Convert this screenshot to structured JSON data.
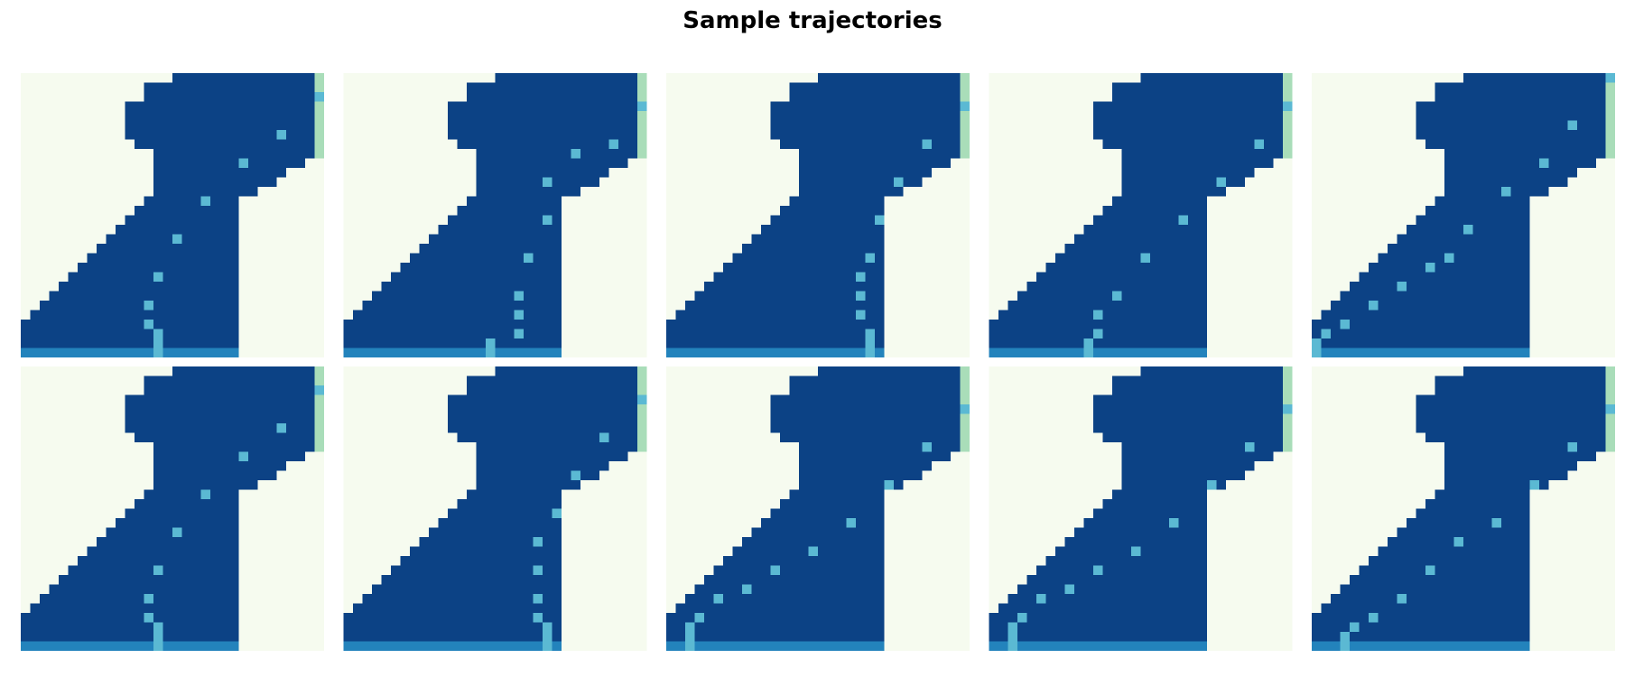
{
  "title": "Sample trajectories",
  "chart_data": {
    "type": "heatmap",
    "grid_rows": 30,
    "grid_cols": 32,
    "panel_layout": {
      "rows": 2,
      "cols": 5
    },
    "colors": {
      "empty": "#f6fbef",
      "track": "#0c4285",
      "start_line": "#2383bc",
      "car": "#5bb9d3",
      "finish": "#a9ddb9"
    },
    "track_rows": [
      [
        16,
        31
      ],
      [
        13,
        31
      ],
      [
        13,
        31
      ],
      [
        11,
        31
      ],
      [
        11,
        31
      ],
      [
        11,
        31
      ],
      [
        11,
        31
      ],
      [
        12,
        31
      ],
      [
        14,
        30
      ],
      [
        14,
        29
      ],
      [
        14,
        27
      ],
      [
        14,
        26
      ],
      [
        14,
        24
      ],
      [
        13,
        22
      ],
      [
        12,
        22
      ],
      [
        11,
        22
      ],
      [
        10,
        22
      ],
      [
        9,
        22
      ],
      [
        8,
        22
      ],
      [
        7,
        22
      ],
      [
        6,
        22
      ],
      [
        5,
        22
      ],
      [
        4,
        22
      ],
      [
        3,
        22
      ],
      [
        2,
        22
      ],
      [
        1,
        22
      ],
      [
        0,
        22
      ],
      [
        0,
        22
      ],
      [
        0,
        22
      ]
    ],
    "finish_cells": {
      "col": 31,
      "rows": [
        0,
        1,
        2,
        3,
        4,
        5,
        6,
        7,
        8
      ]
    },
    "panels": [
      {
        "id": "row1-col1",
        "car_marker_row": 2,
        "path": [
          [
            28,
            14
          ],
          [
            27,
            14
          ],
          [
            26,
            13
          ],
          [
            24,
            13
          ],
          [
            21,
            14
          ],
          [
            17,
            16
          ],
          [
            13,
            19
          ],
          [
            9,
            23
          ],
          [
            6,
            27
          ]
        ]
      },
      {
        "id": "row1-col2",
        "car_marker_row": 3,
        "path": [
          [
            28,
            15
          ],
          [
            27,
            18
          ],
          [
            25,
            18
          ],
          [
            23,
            18
          ],
          [
            19,
            19
          ],
          [
            15,
            21
          ],
          [
            11,
            21
          ],
          [
            8,
            24
          ],
          [
            7,
            28
          ]
        ]
      },
      {
        "id": "row1-col3",
        "car_marker_row": 3,
        "path": [
          [
            28,
            21
          ],
          [
            27,
            21
          ],
          [
            25,
            20
          ],
          [
            23,
            20
          ],
          [
            21,
            20
          ],
          [
            19,
            21
          ],
          [
            15,
            22
          ],
          [
            11,
            24
          ],
          [
            7,
            27
          ]
        ]
      },
      {
        "id": "row1-col4",
        "car_marker_row": 3,
        "path": [
          [
            28,
            10
          ],
          [
            27,
            11
          ],
          [
            25,
            11
          ],
          [
            23,
            13
          ],
          [
            19,
            16
          ],
          [
            15,
            20
          ],
          [
            11,
            24
          ],
          [
            7,
            28
          ]
        ]
      },
      {
        "id": "row1-col5",
        "car_marker_row": 0,
        "path": [
          [
            28,
            0
          ],
          [
            27,
            1
          ],
          [
            26,
            3
          ],
          [
            24,
            6
          ],
          [
            22,
            9
          ],
          [
            20,
            12
          ],
          [
            19,
            14
          ],
          [
            16,
            16
          ],
          [
            12,
            20
          ],
          [
            9,
            24
          ],
          [
            5,
            27
          ]
        ]
      },
      {
        "id": "row2-col1",
        "car_marker_row": 2,
        "path": [
          [
            28,
            14
          ],
          [
            27,
            14
          ],
          [
            26,
            13
          ],
          [
            24,
            13
          ],
          [
            21,
            14
          ],
          [
            17,
            16
          ],
          [
            13,
            19
          ],
          [
            9,
            23
          ],
          [
            6,
            27
          ]
        ]
      },
      {
        "id": "row2-col2",
        "car_marker_row": 3,
        "path": [
          [
            28,
            21
          ],
          [
            27,
            21
          ],
          [
            26,
            20
          ],
          [
            24,
            20
          ],
          [
            21,
            20
          ],
          [
            18,
            20
          ],
          [
            15,
            22
          ],
          [
            11,
            24
          ],
          [
            7,
            27
          ]
        ]
      },
      {
        "id": "row2-col3",
        "car_marker_row": 4,
        "path": [
          [
            28,
            2
          ],
          [
            27,
            2
          ],
          [
            26,
            3
          ],
          [
            24,
            5
          ],
          [
            23,
            8
          ],
          [
            21,
            11
          ],
          [
            19,
            15
          ],
          [
            16,
            19
          ],
          [
            12,
            23
          ],
          [
            8,
            27
          ]
        ]
      },
      {
        "id": "row2-col4",
        "car_marker_row": 4,
        "path": [
          [
            28,
            2
          ],
          [
            27,
            2
          ],
          [
            26,
            3
          ],
          [
            24,
            5
          ],
          [
            23,
            8
          ],
          [
            21,
            11
          ],
          [
            19,
            15
          ],
          [
            16,
            19
          ],
          [
            12,
            23
          ],
          [
            8,
            27
          ]
        ]
      },
      {
        "id": "row2-col5",
        "car_marker_row": 4,
        "path": [
          [
            28,
            3
          ],
          [
            27,
            4
          ],
          [
            26,
            6
          ],
          [
            24,
            9
          ],
          [
            21,
            12
          ],
          [
            18,
            15
          ],
          [
            16,
            19
          ],
          [
            12,
            23
          ],
          [
            8,
            27
          ]
        ]
      }
    ]
  }
}
